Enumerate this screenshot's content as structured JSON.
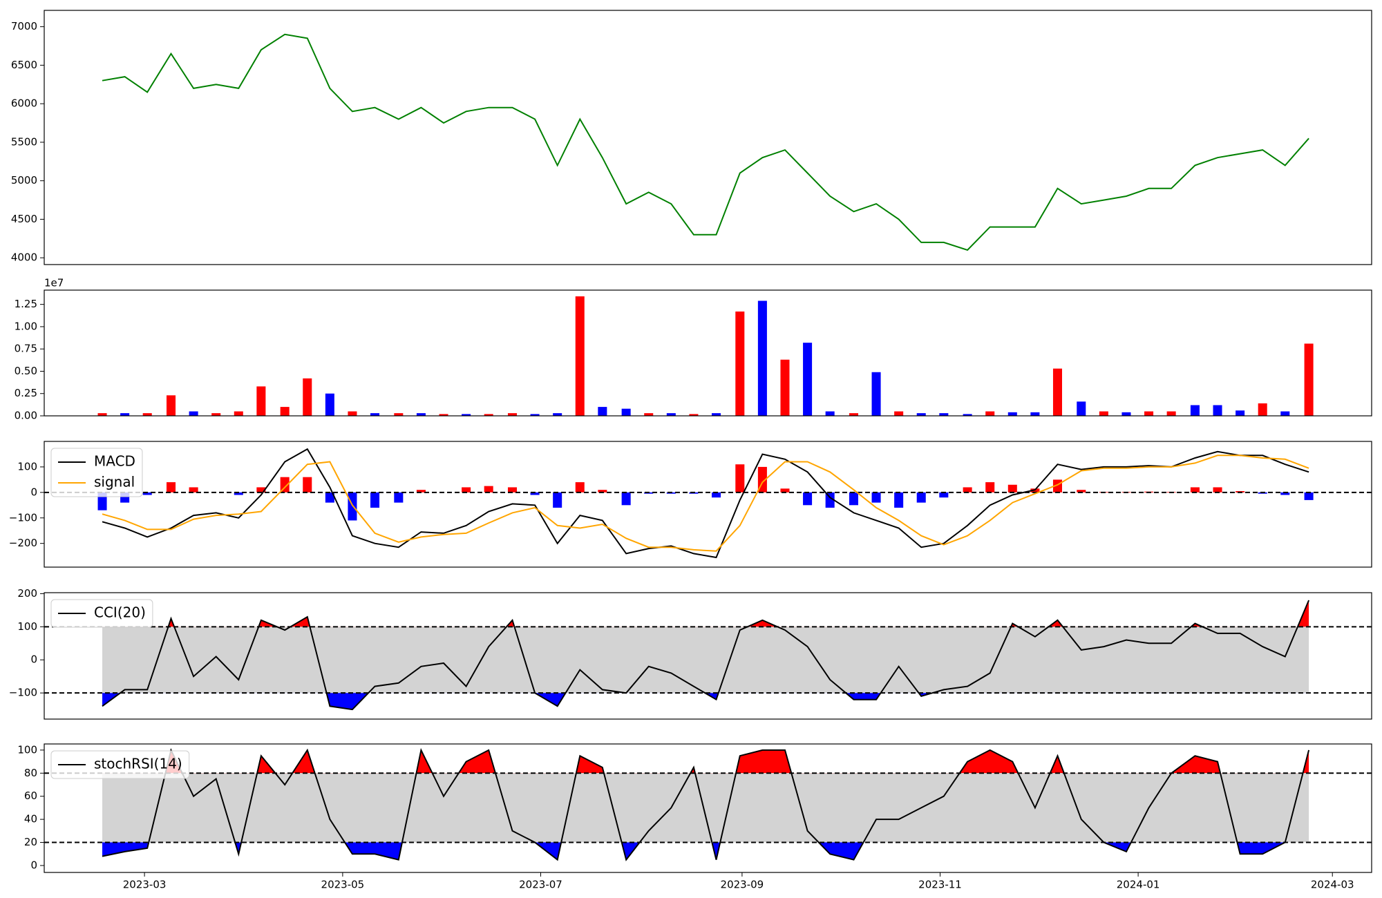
{
  "chart_data": [
    {
      "type": "line",
      "color": "green",
      "x": [
        2023.126,
        2023.145,
        2023.164,
        2023.184,
        2023.203,
        2023.222,
        2023.241,
        2023.26,
        2023.28,
        2023.299,
        2023.318,
        2023.337,
        2023.356,
        2023.376,
        2023.395,
        2023.414,
        2023.433,
        2023.452,
        2023.472,
        2023.491,
        2023.51,
        2023.529,
        2023.548,
        2023.568,
        2023.587,
        2023.606,
        2023.625,
        2023.644,
        2023.664,
        2023.683,
        2023.702,
        2023.721,
        2023.74,
        2023.76,
        2023.779,
        2023.798,
        2023.817,
        2023.836,
        2023.856,
        2023.875,
        2023.894,
        2023.913,
        2023.932,
        2023.952,
        2023.971,
        2023.99,
        2024.009,
        2024.028,
        2024.048,
        2024.067,
        2024.086,
        2024.105,
        2024.124,
        2024.144
      ],
      "xlim": [
        2023.077,
        2024.197
      ],
      "values": [
        6300,
        6350,
        6150,
        6650,
        6200,
        6250,
        6200,
        6700,
        6900,
        6850,
        6200,
        5900,
        5950,
        5800,
        5950,
        5750,
        5900,
        5950,
        5950,
        5800,
        5200,
        5800,
        5300,
        4700,
        4850,
        4700,
        4300,
        4300,
        5100,
        5300,
        5400,
        5100,
        4800,
        4600,
        4700,
        4500,
        4200,
        4200,
        4100,
        4400,
        4400,
        4400,
        4900,
        4700,
        4750,
        4800,
        4900,
        4900,
        5200,
        5300,
        5350,
        5400,
        5200,
        5550
      ],
      "ylim": [
        3912,
        7212
      ],
      "yticks": [
        4000,
        4500,
        5000,
        5500,
        6000,
        6500,
        7000
      ]
    },
    {
      "type": "bar",
      "offset_label": "1e7",
      "values": [
        0.03,
        0.03,
        0.03,
        0.23,
        0.05,
        0.03,
        0.05,
        0.33,
        0.1,
        0.42,
        0.25,
        0.05,
        0.03,
        0.03,
        0.03,
        0.02,
        0.02,
        0.02,
        0.03,
        0.02,
        0.03,
        1.34,
        0.1,
        0.08,
        0.03,
        0.03,
        0.02,
        0.03,
        1.17,
        1.29,
        0.63,
        0.82,
        0.05,
        0.03,
        0.49,
        0.05,
        0.03,
        0.03,
        0.02,
        0.05,
        0.04,
        0.04,
        0.53,
        0.16,
        0.05,
        0.04,
        0.05,
        0.05,
        0.12,
        0.12,
        0.06,
        0.14,
        0.05,
        0.81
      ],
      "colors": [
        "red",
        "blue",
        "red",
        "red",
        "blue",
        "red",
        "red",
        "red",
        "red",
        "red",
        "blue",
        "red",
        "blue",
        "red",
        "blue",
        "red",
        "blue",
        "red",
        "red",
        "blue",
        "blue",
        "red",
        "blue",
        "blue",
        "red",
        "blue",
        "red",
        "blue",
        "red",
        "blue",
        "red",
        "blue",
        "blue",
        "red",
        "blue",
        "red",
        "blue",
        "blue",
        "blue",
        "red",
        "blue",
        "blue",
        "red",
        "blue",
        "red",
        "blue",
        "red",
        "red",
        "blue",
        "blue",
        "blue",
        "red",
        "blue",
        "red"
      ],
      "ylim": [
        0,
        1.41
      ],
      "yticks": [
        {
          "value": 0,
          "label": "0.00"
        },
        0.25,
        {
          "value": 0.5,
          "label": "0.50"
        },
        0.75,
        {
          "value": 1,
          "label": "1.00"
        },
        1.25
      ]
    },
    {
      "type": "macd",
      "legend": "upper left",
      "series": [
        {
          "name": "MACD",
          "color": "black",
          "values": [
            -115,
            -140,
            -175,
            -140,
            -90,
            -80,
            -100,
            -10,
            120,
            170,
            20,
            -170,
            -200,
            -215,
            -155,
            -160,
            -130,
            -75,
            -45,
            -50,
            -200,
            -90,
            -110,
            -240,
            -220,
            -210,
            -240,
            -255,
            -30,
            150,
            130,
            80,
            -20,
            -80,
            -110,
            -140,
            -215,
            -200,
            -130,
            -50,
            -10,
            10,
            110,
            90,
            100,
            100,
            105,
            100,
            135,
            160,
            145,
            145,
            110,
            80
          ]
        },
        {
          "name": "signal",
          "color": "orange",
          "values": [
            -85,
            -110,
            -145,
            -145,
            -105,
            -90,
            -85,
            -75,
            20,
            110,
            120,
            -50,
            -160,
            -195,
            -175,
            -165,
            -160,
            -120,
            -80,
            -60,
            -130,
            -140,
            -125,
            -180,
            -215,
            -215,
            -225,
            -230,
            -130,
            40,
            120,
            120,
            80,
            10,
            -60,
            -110,
            -170,
            -205,
            -170,
            -110,
            -40,
            -5,
            30,
            85,
            95,
            95,
            100,
            100,
            115,
            145,
            145,
            135,
            130,
            95
          ]
        }
      ],
      "histogram": [
        -70,
        -40,
        -10,
        40,
        20,
        0,
        -10,
        20,
        60,
        60,
        -40,
        -110,
        -60,
        -40,
        10,
        0,
        20,
        25,
        20,
        -10,
        -60,
        40,
        10,
        -50,
        -5,
        -5,
        -5,
        -20,
        110,
        100,
        15,
        -50,
        -60,
        -50,
        -40,
        -60,
        -40,
        -20,
        20,
        40,
        30,
        15,
        50,
        10,
        2,
        2,
        3,
        2,
        20,
        20,
        5,
        -5,
        -10,
        -30
      ],
      "pos_color": "red",
      "neg_color": "blue",
      "hlines": [
        0
      ],
      "ylim": [
        -293,
        200
      ],
      "yticks": [
        {
          "value": -200,
          "label": "−200"
        },
        {
          "value": -100,
          "label": "−100"
        },
        0,
        100
      ]
    },
    {
      "type": "band",
      "legend": "upper left",
      "series": [
        {
          "name": "CCI(20)",
          "color": "black",
          "values": [
            -140,
            -90,
            -90,
            125,
            -50,
            10,
            -60,
            120,
            90,
            130,
            -140,
            -150,
            -80,
            -70,
            -20,
            -10,
            -80,
            40,
            120,
            -100,
            -140,
            -30,
            -90,
            -100,
            -20,
            -40,
            -80,
            -120,
            90,
            120,
            90,
            40,
            -60,
            -120,
            -120,
            -20,
            -110,
            -90,
            -80,
            -40,
            110,
            70,
            120,
            30,
            40,
            60,
            50,
            50,
            110,
            80,
            80,
            40,
            10,
            180
          ]
        }
      ],
      "hlines": [
        -100,
        100
      ],
      "band_color": "#d3d3d3",
      "over_color": "red",
      "under_color": "blue",
      "ylim": [
        -179,
        203
      ],
      "yticks": [
        {
          "value": -100,
          "label": "−100"
        },
        0,
        100,
        200
      ]
    },
    {
      "type": "band",
      "legend": "upper left",
      "series": [
        {
          "name": "stochRSI(14)",
          "color": "black",
          "values": [
            8,
            12,
            15,
            100,
            60,
            75,
            10,
            95,
            70,
            100,
            40,
            10,
            10,
            5,
            100,
            60,
            90,
            100,
            30,
            20,
            5,
            95,
            85,
            5,
            30,
            50,
            85,
            5,
            95,
            100,
            100,
            30,
            10,
            5,
            40,
            40,
            50,
            60,
            90,
            100,
            90,
            50,
            95,
            40,
            20,
            12,
            50,
            80,
            95,
            90,
            10,
            10,
            20,
            100
          ]
        }
      ],
      "hlines": [
        20,
        80
      ],
      "band_color": "#d3d3d3",
      "over_color": "red",
      "under_color": "blue",
      "ylim": [
        -6,
        105.3
      ],
      "yticks": [
        0,
        20,
        40,
        60,
        80,
        100
      ],
      "xticks": [
        {
          "value": 2023.1616,
          "label": "2023-03"
        },
        {
          "value": 2023.3288,
          "label": "2023-05"
        },
        {
          "value": 2023.4959,
          "label": "2023-07"
        },
        {
          "value": 2023.6658,
          "label": "2023-09"
        },
        {
          "value": 2023.8329,
          "label": "2023-11"
        },
        {
          "value": 2024.0,
          "label": "2024-01"
        },
        {
          "value": 2024.1639,
          "label": "2024-03"
        }
      ]
    }
  ]
}
